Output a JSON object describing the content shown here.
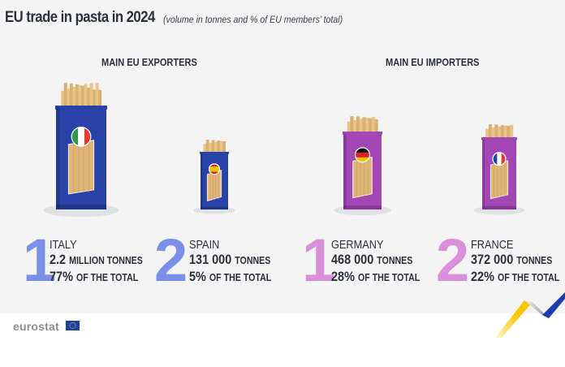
{
  "title": "EU trade in pasta in 2024",
  "subtitle": "(volume in tonnes and % of EU members’ total)",
  "exporters": {
    "heading": "MAIN EU EXPORTERS",
    "color": "#7b8fe6",
    "package_color": "#2a43a8",
    "items": [
      {
        "rank": "1",
        "country": "ITALY",
        "volume": "2.2",
        "volume_unit": "MILLION TONNES",
        "share": "77%",
        "share_suffix": "OF THE TOTAL",
        "flag": "italy-flag"
      },
      {
        "rank": "2",
        "country": "SPAIN",
        "volume": "131 000",
        "volume_unit": "TONNES",
        "share": "5%",
        "share_suffix": "OF THE TOTAL",
        "flag": "spain-flag"
      }
    ]
  },
  "importers": {
    "heading": "MAIN EU IMPORTERS",
    "color": "#d98fd9",
    "package_color": "#a347b5",
    "items": [
      {
        "rank": "1",
        "country": "GERMANY",
        "volume": "468 000",
        "volume_unit": "TONNES",
        "share": "28%",
        "share_suffix": "OF THE  TOTAL",
        "flag": "germany-flag"
      },
      {
        "rank": "2",
        "country": "FRANCE",
        "volume": "372 000",
        "volume_unit": "TONNES",
        "share": "22%",
        "share_suffix": "OF THE TOTAL",
        "flag": "france-flag"
      }
    ]
  },
  "footer": {
    "logo": "eurostat"
  }
}
